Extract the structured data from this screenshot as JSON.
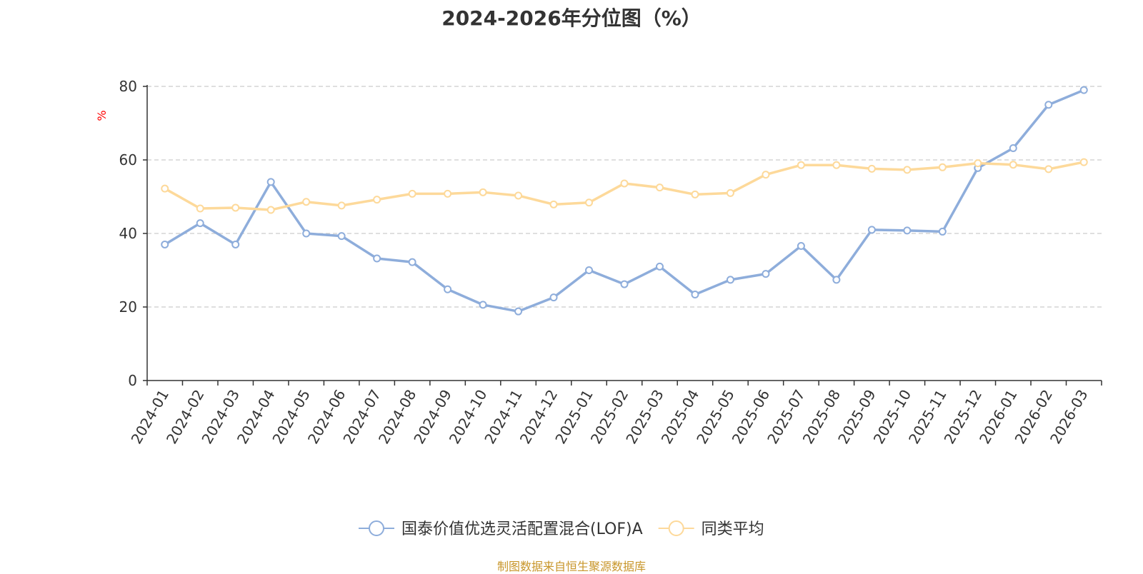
{
  "title": "2024-2026年分位图（%）",
  "footer": "制图数据来自恒生聚源数据库",
  "chart_data": {
    "type": "line",
    "title": "2024-2026年分位图（%）",
    "y_unit_label": "%",
    "ylim": [
      0,
      80
    ],
    "y_ticks": [
      0,
      20,
      40,
      60,
      80
    ],
    "grid": true,
    "legend_position": "bottom",
    "categories": [
      "2024-01",
      "2024-02",
      "2024-03",
      "2024-04",
      "2024-05",
      "2024-06",
      "2024-07",
      "2024-08",
      "2024-09",
      "2024-10",
      "2024-11",
      "2024-12",
      "2025-01",
      "2025-02",
      "2025-03",
      "2025-04",
      "2025-05",
      "2025-06",
      "2025-07",
      "2025-08",
      "2025-09",
      "2025-10",
      "2025-11",
      "2025-12",
      "2026-01",
      "2026-02",
      "2026-03"
    ],
    "series": [
      {
        "name": "国泰价值优选灵活配置混合(LOF)A",
        "color": "#8eaddb",
        "values": [
          37,
          42.8,
          37,
          54,
          40,
          39.3,
          33.2,
          32.2,
          24.8,
          20.6,
          18.8,
          22.6,
          30,
          26.2,
          31,
          23.4,
          27.4,
          29,
          36.6,
          27.4,
          41,
          40.8,
          40.5,
          57.8,
          63.2,
          75,
          79
        ]
      },
      {
        "name": "同类平均",
        "color": "#fdd99a",
        "values": [
          52.2,
          46.8,
          47,
          46.4,
          48.6,
          47.6,
          49.2,
          50.8,
          50.8,
          51.2,
          50.3,
          47.9,
          48.4,
          53.6,
          52.5,
          50.6,
          51,
          56,
          58.6,
          58.6,
          57.6,
          57.3,
          58,
          59.1,
          58.7,
          57.5,
          59.4
        ]
      }
    ]
  }
}
